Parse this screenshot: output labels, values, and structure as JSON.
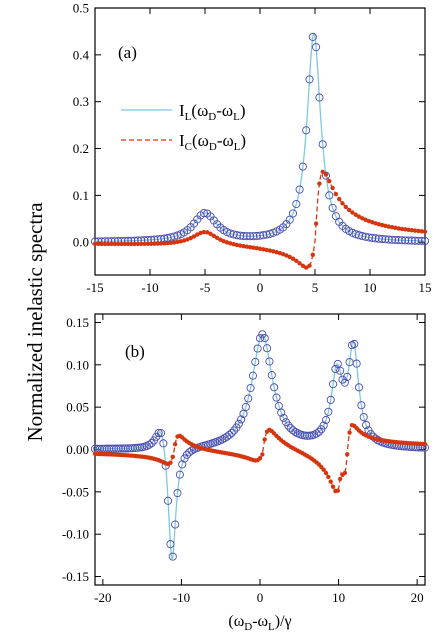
{
  "figure": {
    "ylabel": "Normalized inelastic spectra",
    "xlabel_main": "(ω",
    "xlabel_sub1": "D",
    "xlabel_mid": "-ω",
    "xlabel_sub2": "L",
    "xlabel_end": ")/γ"
  },
  "colors": {
    "IL_line": "#7fc8df",
    "IL_marker": "#4b4bb0",
    "IC": "#d6360f"
  },
  "chart_data": [
    {
      "type": "line",
      "panel_label": "(a)",
      "xlim": [
        -15,
        15
      ],
      "ylim": [
        -0.07,
        0.5
      ],
      "xticks": [
        -15,
        -10,
        -5,
        0,
        5,
        10,
        15
      ],
      "yticks": [
        0.0,
        0.1,
        0.2,
        0.3,
        0.4,
        0.5
      ],
      "ytick_labels": [
        "0.0",
        "0.1",
        "0.2",
        "0.3",
        "0.4",
        "0.5"
      ],
      "legend": {
        "position": "left",
        "entries": [
          {
            "main": "I",
            "sub": "L",
            "arg": "(ω",
            "sub2": "D",
            "mid": "-ω",
            "sub3": "L",
            "end": ")"
          },
          {
            "main": "I",
            "sub": "C",
            "arg": "(ω",
            "sub2": "D",
            "mid": "-ω",
            "sub3": "L",
            "end": ")"
          }
        ]
      },
      "series": [
        {
          "name": "IL",
          "style": "solid line with open circles",
          "peaks": [
            {
              "x0": -5.0,
              "width": 1.3,
              "height": 0.06
            },
            {
              "x0": 4.9,
              "width": 0.75,
              "height": 0.445
            }
          ]
        },
        {
          "name": "IC",
          "style": "dashed line with filled dots",
          "features": [
            {
              "kind": "peak",
              "x0": -5.0,
              "width": 1.4,
              "height": 0.03
            },
            {
              "kind": "dispersive",
              "x0": 5.0,
              "width": 0.75,
              "min": -0.055,
              "max": 0.15
            }
          ]
        }
      ]
    },
    {
      "type": "line",
      "panel_label": "(b)",
      "xlim": [
        -21,
        21
      ],
      "ylim": [
        -0.16,
        0.16
      ],
      "xticks": [
        -20,
        -10,
        0,
        10,
        20
      ],
      "yticks": [
        -0.15,
        -0.1,
        -0.05,
        0.0,
        0.05,
        0.1,
        0.15
      ],
      "ytick_labels": [
        "-0.15",
        "-0.10",
        "-0.05",
        "0.00",
        "0.05",
        "0.10",
        "0.15"
      ],
      "series": [
        {
          "name": "IL",
          "style": "solid line with open circles",
          "features": [
            {
              "kind": "peak",
              "x0": -12.5,
              "width": 0.9,
              "height": 0.04
            },
            {
              "kind": "dip",
              "x0": -11.2,
              "width": 0.6,
              "depth": -0.145
            },
            {
              "kind": "peak",
              "x0": 0.3,
              "width": 1.6,
              "height": 0.135
            },
            {
              "kind": "peak",
              "x0": 9.8,
              "width": 0.9,
              "height": 0.083
            },
            {
              "kind": "peak",
              "x0": 11.9,
              "width": 0.8,
              "height": 0.112
            }
          ]
        },
        {
          "name": "IC",
          "style": "dashed line with filled dots",
          "features": [
            {
              "kind": "dispersive",
              "x0": -11.0,
              "width": 0.7,
              "min": -0.012,
              "max": 0.022
            },
            {
              "kind": "dispersive",
              "x0": 0.3,
              "width": 0.9,
              "min": -0.008,
              "max": 0.03
            },
            {
              "kind": "dispersive",
              "x0": 10.3,
              "width": 0.7,
              "min": -0.032,
              "max": 0.0
            },
            {
              "kind": "dispersive",
              "x0": 11.2,
              "width": 0.6,
              "min": -0.037,
              "max": 0.023
            }
          ]
        }
      ]
    }
  ]
}
